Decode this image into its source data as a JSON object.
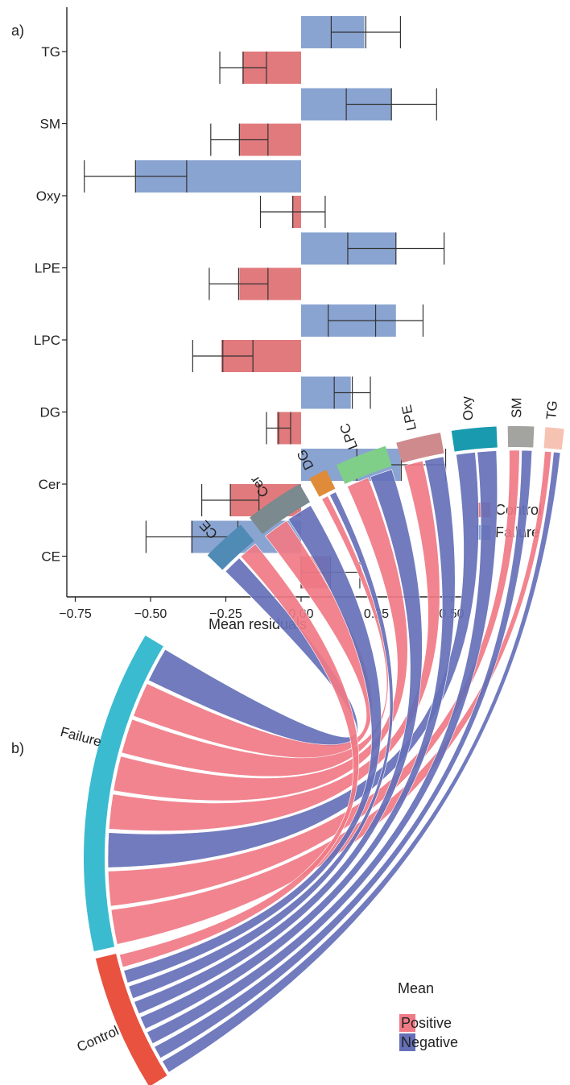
{
  "panels": {
    "a_label": "a)",
    "b_label": "b)"
  },
  "colors": {
    "control": "#e07a7c",
    "failure": "#8aa4d2",
    "positive": "#f07a85",
    "negative": "#6570b8",
    "failure_seg": "#3bbbd0",
    "control_seg": "#e8523f"
  },
  "chart_data": [
    {
      "type": "bar",
      "orientation": "horizontal",
      "categories": [
        "TG",
        "SM",
        "Oxy",
        "LPE",
        "LPC",
        "DG",
        "Cer",
        "CE"
      ],
      "series": [
        {
          "name": "Failure",
          "values": [
            0.21,
            0.3,
            -0.55,
            0.315,
            0.315,
            0.165,
            0.33,
            -0.365
          ],
          "error_low": [
            0.1,
            0.15,
            -0.72,
            0.155,
            0.09,
            0.11,
            0.185,
            -0.515
          ],
          "error_high": [
            0.33,
            0.45,
            -0.38,
            0.475,
            0.405,
            0.23,
            0.48,
            -0.21
          ]
        },
        {
          "name": "Control",
          "values": [
            -0.195,
            -0.205,
            -0.03,
            -0.205,
            -0.265,
            -0.08,
            -0.235,
            0.095
          ],
          "error_low": [
            -0.27,
            -0.3,
            -0.135,
            -0.305,
            -0.36,
            -0.115,
            -0.33,
            0.0
          ],
          "error_high": [
            -0.115,
            -0.11,
            0.08,
            -0.11,
            -0.16,
            -0.035,
            -0.14,
            0.195
          ]
        }
      ],
      "xlabel": "Mean residuals",
      "ylabel": "",
      "xlim": [
        -0.75,
        0.5
      ],
      "xticks": [
        "−0.75",
        "−0.50",
        "−0.25",
        "0.00",
        "0.25",
        "0.50"
      ],
      "legend": {
        "position": "bottom-right",
        "entries": [
          "Control",
          "Failure"
        ]
      },
      "grid": false
    },
    {
      "type": "chord",
      "source_segments": [
        "Failure",
        "Control"
      ],
      "target_segments": [
        "CE",
        "Cer",
        "DG",
        "LPC",
        "LPE",
        "Oxy",
        "SM",
        "TG"
      ],
      "target_colors": [
        "#4f8bb5",
        "#7a8a8e",
        "#e08b3a",
        "#7fcf88",
        "#cf8a8d",
        "#199aae",
        "#a3a39f",
        "#f6c3b3"
      ],
      "links": [
        {
          "source": "Failure",
          "target": "CE",
          "sign": "Negative"
        },
        {
          "source": "Failure",
          "target": "Cer",
          "sign": "Positive"
        },
        {
          "source": "Failure",
          "target": "DG",
          "sign": "Positive"
        },
        {
          "source": "Failure",
          "target": "LPC",
          "sign": "Positive"
        },
        {
          "source": "Failure",
          "target": "LPE",
          "sign": "Positive"
        },
        {
          "source": "Failure",
          "target": "Oxy",
          "sign": "Negative"
        },
        {
          "source": "Failure",
          "target": "SM",
          "sign": "Positive"
        },
        {
          "source": "Failure",
          "target": "TG",
          "sign": "Positive"
        },
        {
          "source": "Control",
          "target": "CE",
          "sign": "Positive"
        },
        {
          "source": "Control",
          "target": "Cer",
          "sign": "Negative"
        },
        {
          "source": "Control",
          "target": "DG",
          "sign": "Negative"
        },
        {
          "source": "Control",
          "target": "LPC",
          "sign": "Negative"
        },
        {
          "source": "Control",
          "target": "LPE",
          "sign": "Negative"
        },
        {
          "source": "Control",
          "target": "Oxy",
          "sign": "Negative"
        },
        {
          "source": "Control",
          "target": "SM",
          "sign": "Negative"
        },
        {
          "source": "Control",
          "target": "TG",
          "sign": "Negative"
        }
      ],
      "legend": {
        "title": "Mean",
        "entries": [
          "Positive",
          "Negative"
        ],
        "position": "bottom-right"
      }
    }
  ]
}
